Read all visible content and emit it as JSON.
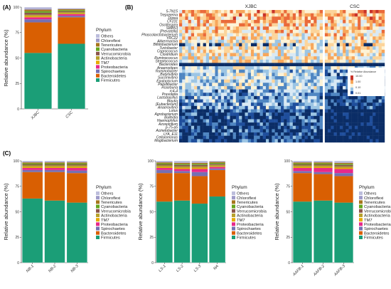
{
  "panel_labels": {
    "A": "(A)",
    "B": "(B)",
    "C": "(C)"
  },
  "y_axis_label": "Relative abundance (%)",
  "legend": {
    "title": "Phylum",
    "entries": [
      {
        "name": "Others",
        "color": "#bcbddc"
      },
      {
        "name": "Chloroflexi",
        "color": "#9e9ac8"
      },
      {
        "name": "Tenericutes",
        "color": "#a6761d"
      },
      {
        "name": "Cyanobacteria",
        "color": "#66a61e"
      },
      {
        "name": "Verrucomicrobia",
        "color": "#8c564b"
      },
      {
        "name": "Actinobacteria",
        "color": "#b8a12c"
      },
      {
        "name": "TM7",
        "color": "#e6ab02"
      },
      {
        "name": "Proteobacteria",
        "color": "#e7298a"
      },
      {
        "name": "Spirochaetes",
        "color": "#7570b3"
      },
      {
        "name": "Bacteroidetes",
        "color": "#d95f02"
      },
      {
        "name": "Firmicutes",
        "color": "#1b9e77"
      }
    ]
  },
  "heatmap": {
    "groups": [
      "XJBC",
      "CSC"
    ],
    "taxa": [
      "5-7N15",
      "Treponema",
      "Dorea",
      "CF231",
      "Oscillospira",
      "SMB53",
      "[Prevotella]",
      "Phascolarctobacterium",
      "YRC22",
      "Akkermansia",
      "Bifidobacterium",
      "Turicibacter",
      "Coprococcus",
      "Clostridium",
      "Ruminococcus",
      "Streptococcus",
      "Bacteroides",
      "Anaerostipes",
      "Ruminobacter",
      "Butyrivibrio",
      "Succinivibrio",
      "Epulopiscium",
      "Paludibacter",
      "Roseburia",
      "rc4-4",
      "Prevotella",
      "Lactobacillus",
      "Blautia",
      "[Eubacterium]",
      "Anaerovibrio",
      "Lotus",
      "Agrobacterium",
      "Bulleidia",
      "Haemophilus",
      "Azospirillum",
      "p-75-a5",
      "Acinetobacter",
      "LYA_E11",
      "Cellulomonas",
      "Mogibacterium"
    ],
    "legend_title": "% Relative Abundance",
    "legend_ticks": [
      "10.00",
      "1.00",
      "0.10",
      "0.01"
    ]
  },
  "chart_data": [
    {
      "panel": "A",
      "type": "bar",
      "stacked": true,
      "categories": [
        "XJBC",
        "CSC"
      ],
      "ylim": [
        0,
        100
      ],
      "yticks": [
        0,
        25,
        50,
        75,
        100
      ],
      "ylabel": "Relative abundance (%)",
      "series": [
        {
          "name": "Firmicutes",
          "values": [
            55,
            64
          ]
        },
        {
          "name": "Bacteroidetes",
          "values": [
            30,
            26
          ]
        },
        {
          "name": "Spirochaetes",
          "values": [
            3,
            1.5
          ]
        },
        {
          "name": "Proteobacteria",
          "values": [
            2,
            1.5
          ]
        },
        {
          "name": "TM7",
          "values": [
            1,
            0.5
          ]
        },
        {
          "name": "Actinobacteria",
          "values": [
            1.5,
            1.5
          ]
        },
        {
          "name": "Verrucomicrobia",
          "values": [
            2,
            1
          ]
        },
        {
          "name": "Cyanobacteria",
          "values": [
            1.5,
            1
          ]
        },
        {
          "name": "Tenericutes",
          "values": [
            1.5,
            1
          ]
        },
        {
          "name": "Chloroflexi",
          "values": [
            1,
            0.5
          ]
        },
        {
          "name": "Others",
          "values": [
            1.5,
            0.5
          ]
        }
      ]
    },
    {
      "panel": "B",
      "type": "heatmap",
      "groups": [
        "XJBC",
        "CSC"
      ],
      "columns_per_group": [
        48,
        20
      ],
      "value_scale": "log10 % relative abundance",
      "range": [
        0.01,
        10
      ]
    },
    {
      "panel": "C-1",
      "type": "bar",
      "stacked": true,
      "categories": [
        "NB-1",
        "NB-2",
        "NB-3"
      ],
      "ylim": [
        0,
        100
      ],
      "yticks": [
        0,
        25,
        50,
        75,
        100
      ],
      "ylabel": "Relative abundance (%)",
      "series": [
        {
          "name": "Firmicutes",
          "values": [
            63,
            61,
            59
          ]
        },
        {
          "name": "Bacteroidetes",
          "values": [
            26,
            28,
            29
          ]
        },
        {
          "name": "Spirochaetes",
          "values": [
            2,
            2,
            2.5
          ]
        },
        {
          "name": "Proteobacteria",
          "values": [
            2,
            2,
            2.5
          ]
        },
        {
          "name": "TM7",
          "values": [
            1,
            1,
            1
          ]
        },
        {
          "name": "Actinobacteria",
          "values": [
            1.5,
            1.5,
            1.5
          ]
        },
        {
          "name": "Verrucomicrobia",
          "values": [
            1,
            1,
            1
          ]
        },
        {
          "name": "Cyanobacteria",
          "values": [
            1,
            1,
            1
          ]
        },
        {
          "name": "Tenericutes",
          "values": [
            1,
            1,
            1
          ]
        },
        {
          "name": "Chloroflexi",
          "values": [
            0.5,
            0.5,
            0.5
          ]
        },
        {
          "name": "Others",
          "values": [
            1,
            1,
            1
          ]
        }
      ]
    },
    {
      "panel": "C-2",
      "type": "bar",
      "stacked": true,
      "categories": [
        "LS-1",
        "LS-2",
        "LS-3",
        "NA"
      ],
      "ylim": [
        0,
        100
      ],
      "yticks": [
        0,
        25,
        50,
        75,
        100
      ],
      "ylabel": "Relative abundance (%)",
      "series": [
        {
          "name": "Firmicutes",
          "values": [
            60,
            61,
            58,
            65
          ]
        },
        {
          "name": "Bacteroidetes",
          "values": [
            28,
            27,
            27,
            26
          ]
        },
        {
          "name": "Spirochaetes",
          "values": [
            3,
            2,
            4,
            1.5
          ]
        },
        {
          "name": "Proteobacteria",
          "values": [
            2,
            2,
            3,
            1.5
          ]
        },
        {
          "name": "TM7",
          "values": [
            1,
            1,
            1,
            0.5
          ]
        },
        {
          "name": "Actinobacteria",
          "values": [
            1.5,
            1.5,
            1.5,
            1.5
          ]
        },
        {
          "name": "Verrucomicrobia",
          "values": [
            1,
            1.5,
            1.5,
            1
          ]
        },
        {
          "name": "Cyanobacteria",
          "values": [
            1,
            1,
            1,
            1
          ]
        },
        {
          "name": "Tenericutes",
          "values": [
            1,
            1,
            1,
            1
          ]
        },
        {
          "name": "Chloroflexi",
          "values": [
            0.5,
            0.5,
            0.5,
            0.5
          ]
        },
        {
          "name": "Others",
          "values": [
            1,
            1.5,
            1.5,
            0.5
          ]
        }
      ]
    },
    {
      "panel": "C-3",
      "type": "bar",
      "stacked": true,
      "categories": [
        "AAFB-1",
        "AAFB-2",
        "AAFB-3"
      ],
      "ylim": [
        0,
        100
      ],
      "yticks": [
        0,
        25,
        50,
        75,
        100
      ],
      "ylabel": "Relative abundance (%)",
      "series": [
        {
          "name": "Firmicutes",
          "values": [
            60,
            61,
            59
          ]
        },
        {
          "name": "Bacteroidetes",
          "values": [
            28,
            26,
            26
          ]
        },
        {
          "name": "Spirochaetes",
          "values": [
            2,
            2,
            3
          ]
        },
        {
          "name": "Proteobacteria",
          "values": [
            3,
            4,
            4
          ]
        },
        {
          "name": "TM7",
          "values": [
            1,
            1,
            1
          ]
        },
        {
          "name": "Actinobacteria",
          "values": [
            1.5,
            1.5,
            1.5
          ]
        },
        {
          "name": "Verrucomicrobia",
          "values": [
            1,
            1,
            1.5
          ]
        },
        {
          "name": "Cyanobacteria",
          "values": [
            1,
            1,
            1
          ]
        },
        {
          "name": "Tenericutes",
          "values": [
            1,
            1,
            1
          ]
        },
        {
          "name": "Chloroflexi",
          "values": [
            0.5,
            0.5,
            0.5
          ]
        },
        {
          "name": "Others",
          "values": [
            1,
            1,
            1.5
          ]
        }
      ]
    }
  ]
}
